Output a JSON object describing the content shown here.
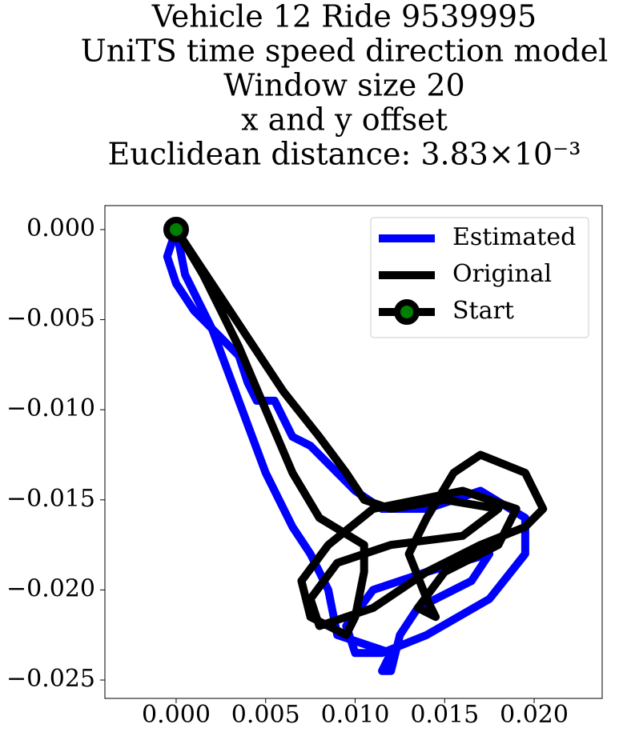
{
  "chart_data": {
    "type": "line",
    "title": [
      "Vehicle 12 Ride 9539995",
      "UniTS time speed direction model",
      "Window size 20",
      "x and y offset",
      "Euclidean distance: 3.83×10⁻³"
    ],
    "xlim": [
      -0.00398,
      0.0238
    ],
    "ylim": [
      -0.02602,
      0.00133
    ],
    "xticks": [
      {
        "value": 0,
        "label": "0.000"
      },
      {
        "value": 0.005,
        "label": "0.005"
      },
      {
        "value": 0.01,
        "label": "0.010"
      },
      {
        "value": 0.015,
        "label": "0.015"
      },
      {
        "value": 0.02,
        "label": "0.020"
      }
    ],
    "yticks": [
      {
        "value": 0,
        "label": "0.000"
      },
      {
        "value": -0.005,
        "label": "−0.005"
      },
      {
        "value": -0.01,
        "label": "−0.010"
      },
      {
        "value": -0.015,
        "label": "−0.015"
      },
      {
        "value": -0.02,
        "label": "−0.020"
      },
      {
        "value": -0.025,
        "label": "−0.025"
      }
    ],
    "legend": "upper right",
    "series": [
      {
        "name": "Estimated",
        "color": "#0000ff",
        "x": [
          0,
          -0.0005,
          0,
          0.001,
          0.002,
          0.0035,
          0.004,
          0.0045,
          0.0055,
          0.0065,
          0.0075,
          0.009,
          0.01,
          0.0115,
          0.014,
          0.017,
          0.0195,
          0.0195,
          0.0175,
          0.014,
          0.0115,
          0.01,
          0.0095,
          0.011,
          0.014,
          0.0175,
          0.0165,
          0.0135,
          0.0125,
          0.012,
          0.0115,
          0.012,
          0.009,
          0.0085,
          0.0075,
          0.0065,
          0.005,
          0.0035,
          0.002,
          0.0005,
          0
        ],
        "y": [
          0,
          -0.0015,
          -0.003,
          -0.0045,
          -0.0055,
          -0.007,
          -0.0085,
          -0.0095,
          -0.0095,
          -0.0115,
          -0.012,
          -0.0135,
          -0.0145,
          -0.0155,
          -0.0155,
          -0.0145,
          -0.016,
          -0.018,
          -0.0205,
          -0.0225,
          -0.0235,
          -0.0235,
          -0.022,
          -0.02,
          -0.019,
          -0.018,
          -0.0195,
          -0.021,
          -0.0225,
          -0.0245,
          -0.0245,
          -0.0235,
          -0.0225,
          -0.02,
          -0.018,
          -0.0165,
          -0.0135,
          -0.0095,
          -0.0055,
          -0.0025,
          0
        ]
      },
      {
        "name": "Original",
        "color": "#000000",
        "x": [
          0,
          0.002,
          0.004,
          0.006,
          0.008,
          0.0095,
          0.0105,
          0.012,
          0.015,
          0.018,
          0.016,
          0.012,
          0.009,
          0.0075,
          0.008,
          0.011,
          0.014,
          0.017,
          0.0195,
          0.0205,
          0.0195,
          0.017,
          0.0155,
          0.014,
          0.013,
          0.014,
          0.0145,
          0.0135,
          0.015,
          0.018,
          0.019,
          0.016,
          0.011,
          0.0085,
          0.007,
          0.0075,
          0.0095,
          0.01,
          0.0105,
          0.0105,
          0.008,
          0.0065,
          0.005,
          0.0035,
          0.0015,
          0
        ],
        "y": [
          0,
          -0.003,
          -0.006,
          -0.009,
          -0.0115,
          -0.0135,
          -0.015,
          -0.0155,
          -0.015,
          -0.0155,
          -0.017,
          -0.0175,
          -0.0185,
          -0.0205,
          -0.022,
          -0.021,
          -0.019,
          -0.0175,
          -0.0165,
          -0.0155,
          -0.0135,
          -0.0125,
          -0.0135,
          -0.016,
          -0.018,
          -0.0205,
          -0.0215,
          -0.021,
          -0.019,
          -0.0175,
          -0.0155,
          -0.0145,
          -0.0155,
          -0.0175,
          -0.0195,
          -0.0215,
          -0.0225,
          -0.0215,
          -0.019,
          -0.0175,
          -0.016,
          -0.0135,
          -0.01,
          -0.0065,
          -0.0025,
          0
        ]
      },
      {
        "name": "Start",
        "color": "#000000",
        "marker_color": "#008000",
        "x": [
          0
        ],
        "y": [
          0
        ]
      }
    ]
  }
}
